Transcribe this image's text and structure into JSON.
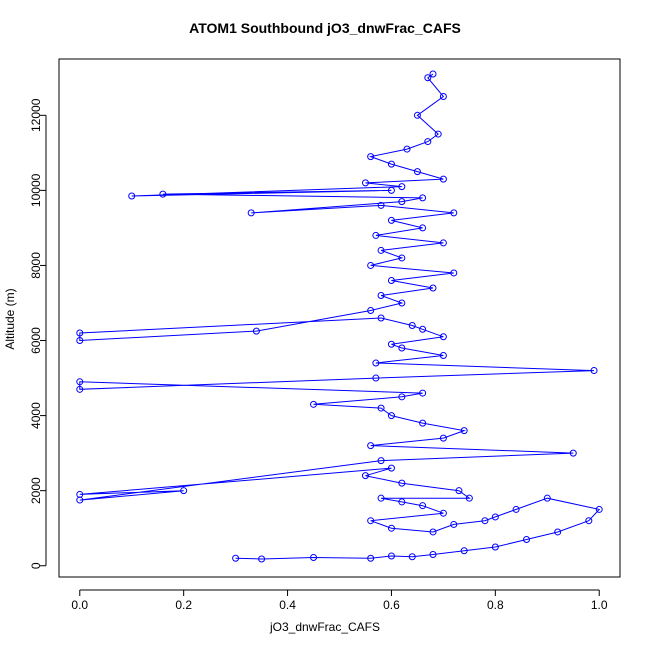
{
  "chart_data": {
    "type": "scatter",
    "title": "ATOM1 Southbound jO3_dnwFrac_CAFS",
    "xlabel": "jO3_dnwFrac_CAFS",
    "ylabel": "Altitude (m)",
    "xlim": [
      -0.04,
      1.04
    ],
    "ylim": [
      -300,
      13500
    ],
    "x_ticks": [
      0.0,
      0.2,
      0.4,
      0.6,
      0.8,
      1.0
    ],
    "x_tick_labels": [
      "0.0",
      "0.2",
      "0.4",
      "0.6",
      "0.8",
      "1.0"
    ],
    "y_ticks": [
      0,
      2000,
      4000,
      6000,
      8000,
      10000,
      12000
    ],
    "y_tick_labels": [
      "0",
      "2000",
      "4000",
      "6000",
      "8000",
      "10000",
      "12000"
    ],
    "grid": false,
    "marker": "open-circle",
    "connected": true,
    "series_color": "#0000ff",
    "series": [
      {
        "x": [
          0.3,
          0.35,
          0.45,
          0.56,
          0.6,
          0.64,
          0.68,
          0.74,
          0.8,
          0.86,
          0.92,
          0.98,
          1.0,
          0.9,
          0.84,
          0.8,
          0.78,
          0.72,
          0.68,
          0.6,
          0.56,
          0.7,
          0.66,
          0.62,
          0.58,
          0.75,
          0.73,
          0.62,
          0.55,
          0.6,
          0.0,
          0.2,
          0.0,
          0.58,
          0.95,
          0.56,
          0.7,
          0.74,
          0.66,
          0.6,
          0.58,
          0.45,
          0.62,
          0.66,
          0.0,
          0.0,
          0.57,
          0.99,
          0.57,
          0.7,
          0.62,
          0.6,
          0.7,
          0.66,
          0.64,
          0.58,
          0.0,
          0.0,
          0.34,
          0.56,
          0.62,
          0.58,
          0.68,
          0.6,
          0.72,
          0.56,
          0.62,
          0.58,
          0.7,
          0.57,
          0.66,
          0.6,
          0.72,
          0.58,
          0.33,
          0.62,
          0.66,
          0.16,
          0.6,
          0.1,
          0.62,
          0.55,
          0.7,
          0.65,
          0.6,
          0.56,
          0.63,
          0.67,
          0.69,
          0.65,
          0.7,
          0.67,
          0.68
        ],
        "y": [
          200,
          180,
          220,
          200,
          260,
          240,
          300,
          400,
          500,
          700,
          900,
          1200,
          1500,
          1800,
          1500,
          1300,
          1200,
          1100,
          900,
          1000,
          1200,
          1400,
          1600,
          1700,
          1800,
          1800,
          2000,
          2200,
          2400,
          2600,
          1900,
          2000,
          1750,
          2800,
          3000,
          3200,
          3400,
          3600,
          3800,
          4000,
          4200,
          4300,
          4500,
          4600,
          4900,
          4700,
          5000,
          5200,
          5400,
          5600,
          5800,
          5900,
          6100,
          6300,
          6400,
          6600,
          6200,
          6000,
          6250,
          6800,
          7000,
          7200,
          7400,
          7600,
          7800,
          8000,
          8200,
          8400,
          8600,
          8800,
          9000,
          9200,
          9400,
          9600,
          9400,
          9700,
          9800,
          9900,
          10000,
          9850,
          10100,
          10200,
          10300,
          10500,
          10700,
          10900,
          11100,
          11300,
          11500,
          12000,
          12500,
          13000,
          13100
        ]
      }
    ]
  }
}
